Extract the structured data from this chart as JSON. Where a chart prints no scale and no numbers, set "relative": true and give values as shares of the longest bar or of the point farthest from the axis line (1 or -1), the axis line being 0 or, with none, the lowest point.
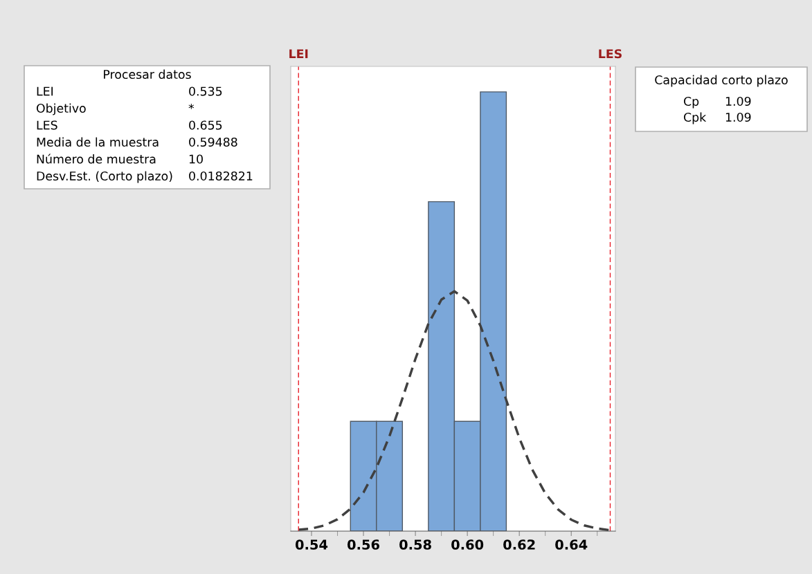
{
  "chart_data": {
    "type": "histogram",
    "relative": true,
    "bins": [
      0.555,
      0.565,
      0.575,
      0.585,
      0.595,
      0.605,
      0.615
    ],
    "values": [
      0.25,
      0.25,
      0,
      0.75,
      0.25,
      1
    ],
    "color": "#7ba7d9",
    "series": [
      {
        "type": "line",
        "color": "#404040",
        "line_style": "dashed",
        "x": [
          0.535,
          0.54,
          0.545,
          0.55,
          0.555,
          0.56,
          0.565,
          0.57,
          0.575,
          0.58,
          0.585,
          0.59,
          0.595,
          0.6,
          0.605,
          0.61,
          0.615,
          0.62,
          0.625,
          0.63,
          0.635,
          0.64,
          0.645,
          0.65,
          0.655
        ],
        "values": [
          0.003,
          0.006,
          0.013,
          0.027,
          0.051,
          0.088,
          0.144,
          0.216,
          0.302,
          0.392,
          0.472,
          0.527,
          0.546,
          0.525,
          0.468,
          0.388,
          0.298,
          0.212,
          0.14,
          0.086,
          0.049,
          0.026,
          0.013,
          0.006,
          0.002
        ]
      }
    ],
    "xlim": [
      0.532,
      0.657
    ],
    "xticks": [
      {
        "value": 0.54,
        "label": "0.54"
      },
      {
        "value": 0.56,
        "label": "0.56"
      },
      {
        "value": 0.58,
        "label": "0.58"
      },
      {
        "value": 0.6,
        "label": "0.60"
      },
      {
        "value": 0.62,
        "label": "0.62"
      },
      {
        "value": 0.64,
        "label": "0.64"
      }
    ],
    "ref_lines": [
      {
        "axis": "x",
        "value": 0.535,
        "label": "LEI",
        "color": "#e8202a",
        "line_style": "dashed"
      },
      {
        "axis": "x",
        "value": 0.655,
        "label": "LES",
        "color": "#e8202a",
        "line_style": "dashed"
      }
    ],
    "tick_labels": "x",
    "grid": false,
    "legend": false,
    "annotations": [
      "Procesar datos",
      "LEI",
      "0.535",
      "Objetivo",
      "*",
      "LES",
      "0.655",
      "Media de la muestra",
      "0.59488",
      "Número de muestra",
      "10",
      "Desv.Est. (Corto plazo)",
      "0.0182821",
      "Capacidad corto plazo",
      "Cp",
      "1.09",
      "Cpk",
      "1.09"
    ]
  }
}
